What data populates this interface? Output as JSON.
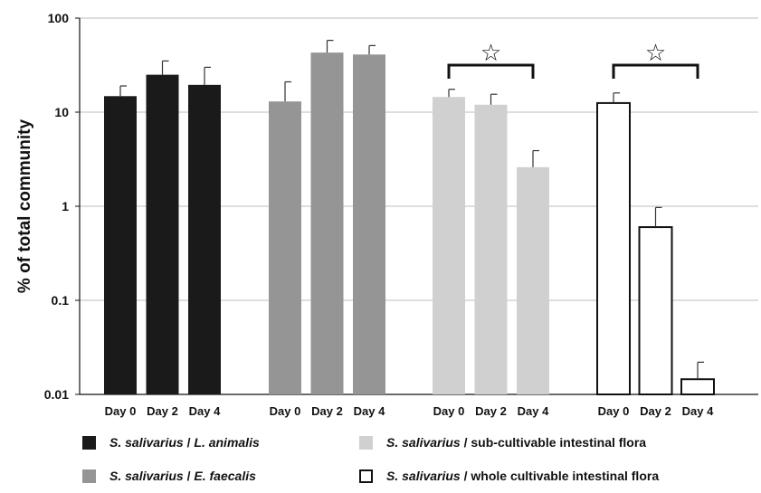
{
  "chart_data": {
    "type": "bar",
    "title": "",
    "xlabel": "",
    "ylabel": "% of total community",
    "y_scale": "log",
    "ylim": [
      0.01,
      100
    ],
    "y_ticks": [
      {
        "value": 0.01,
        "label": "0.01"
      },
      {
        "value": 0.1,
        "label": "0.1"
      },
      {
        "value": 1,
        "label": "1"
      },
      {
        "value": 10,
        "label": "10"
      },
      {
        "value": 100,
        "label": "100"
      }
    ],
    "grid": true,
    "legend_position": "bottom",
    "colors": {
      "group1": "#1a1a1a",
      "group2": "#959595",
      "group3": "#d0d0d0",
      "group4": "#ffffff",
      "outline": "#111111"
    },
    "groups": [
      {
        "name_a": "S. salivarius",
        "name_b": " / ",
        "name_c": "L. animalis",
        "c_italic": true,
        "color": "#1a1a1a",
        "categories": [
          "Day 0",
          "Day 2",
          "Day 4"
        ],
        "values": [
          14.8,
          25,
          19.5
        ],
        "error_upper": [
          19,
          35,
          30
        ],
        "significance": false
      },
      {
        "name_a": "S. salivarius",
        "name_b": " / ",
        "name_c": "E. faecalis",
        "c_italic": true,
        "color": "#959595",
        "categories": [
          "Day 0",
          "Day 2",
          "Day 4"
        ],
        "values": [
          13,
          43,
          41
        ],
        "error_upper": [
          21,
          58,
          51
        ],
        "significance": false
      },
      {
        "name_a": "S. salivarius",
        "name_b": " / ",
        "name_c": "sub-cultivable intestinal flora",
        "c_italic": false,
        "color": "#d0d0d0",
        "categories": [
          "Day 0",
          "Day 2",
          "Day 4"
        ],
        "values": [
          14.5,
          12,
          2.6
        ],
        "error_upper": [
          17.5,
          15.5,
          3.9
        ],
        "significance": true,
        "significance_symbol": "☆"
      },
      {
        "name_a": "S. salivarius",
        "name_b": " / ",
        "name_c": "whole cultivable intestinal flora",
        "c_italic": false,
        "color": "#ffffff",
        "categories": [
          "Day 0",
          "Day 2",
          "Day 4"
        ],
        "values": [
          12.5,
          0.6,
          0.0145
        ],
        "error_upper": [
          16,
          0.97,
          0.022
        ],
        "significance": true,
        "significance_symbol": "☆"
      }
    ],
    "category_labels": [
      {
        "label": "Day 0"
      },
      {
        "label": "Day 2"
      },
      {
        "label": "Day 4"
      },
      {
        "label": "Day 0"
      },
      {
        "label": "Day 2"
      },
      {
        "label": "Day 4"
      },
      {
        "label": "Day 0"
      },
      {
        "label": "Day 2"
      },
      {
        "label": "Day 4"
      },
      {
        "label": "Day 0"
      },
      {
        "label": "Day 2"
      },
      {
        "label": "Day 4"
      }
    ]
  }
}
